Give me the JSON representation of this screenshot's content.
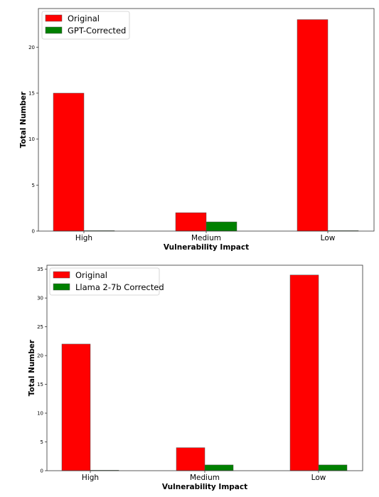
{
  "chart_data": [
    {
      "type": "bar",
      "xlabel": "Vulnerability Impact",
      "ylabel": "Total Number",
      "categories": [
        "High",
        "Medium",
        "Low"
      ],
      "ylim": [
        0,
        24.2
      ],
      "yticks": [
        0,
        5,
        10,
        15,
        20
      ],
      "legend_position": "top-left",
      "grid": false,
      "series": [
        {
          "name": "Original",
          "values": [
            15,
            2,
            23
          ],
          "color": "#ff0000"
        },
        {
          "name": "GPT-Corrected",
          "values": [
            0,
            1,
            0
          ],
          "color": "#008000"
        }
      ]
    },
    {
      "type": "bar",
      "xlabel": "Vulnerability Impact",
      "ylabel": "Total Number",
      "categories": [
        "High",
        "Medium",
        "Low"
      ],
      "ylim": [
        0,
        35.7
      ],
      "yticks": [
        0,
        5,
        10,
        15,
        20,
        25,
        30,
        35
      ],
      "legend_position": "top-left",
      "grid": false,
      "series": [
        {
          "name": "Original",
          "values": [
            22,
            4,
            34
          ],
          "color": "#ff0000"
        },
        {
          "name": "Llama 2-7b Corrected",
          "values": [
            0,
            1,
            1
          ],
          "color": "#008000"
        }
      ]
    }
  ]
}
